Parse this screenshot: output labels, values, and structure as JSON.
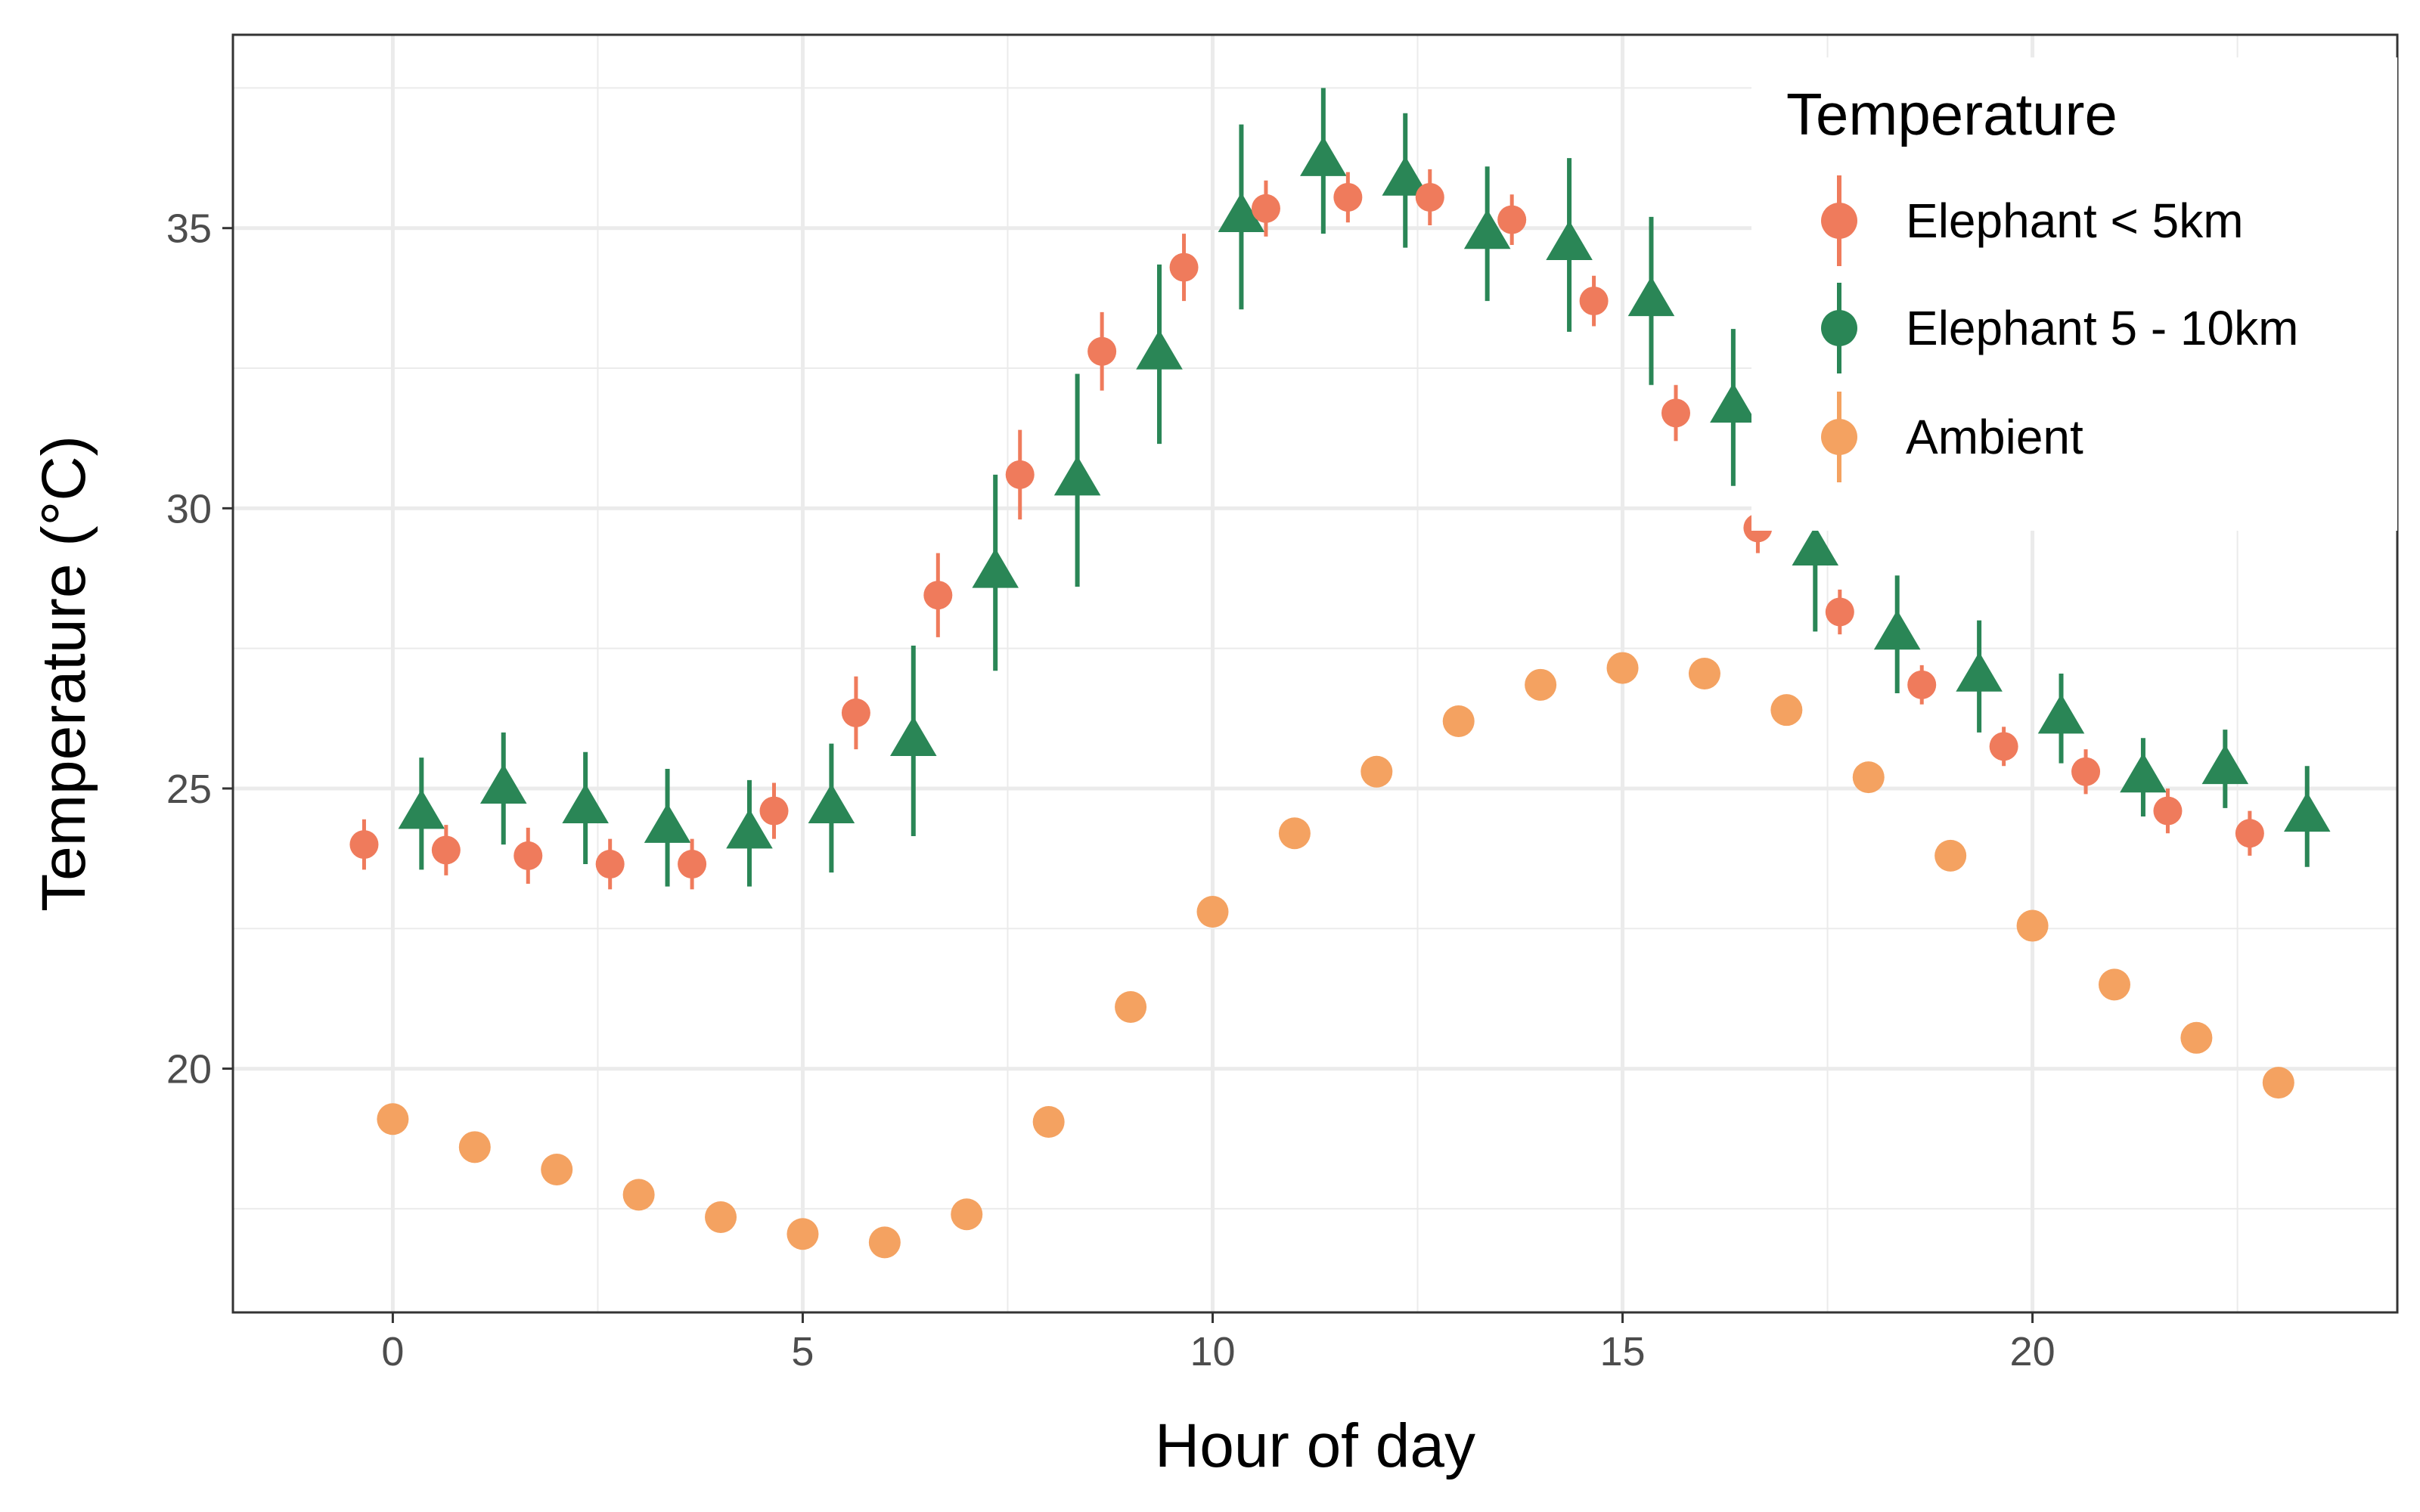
{
  "chart_data": {
    "type": "scatter",
    "xlabel": "Hour of day",
    "ylabel": "Temperature (°C)",
    "xlim": [
      -1.95,
      24.45
    ],
    "ylim": [
      15.65,
      38.45
    ],
    "x_ticks": [
      0,
      5,
      10,
      15,
      20
    ],
    "y_ticks": [
      20,
      25,
      30,
      35
    ],
    "grid": true,
    "legend": {
      "title": "Temperature",
      "position": "top-right",
      "entries": [
        "Elephant < 5km",
        "Elephant 5 - 10km",
        "Ambient"
      ]
    },
    "series": [
      {
        "name": "Elephant < 5km",
        "color": "#ef7b5c",
        "marker": "circle",
        "x": [
          -0.35,
          0.65,
          1.65,
          2.65,
          3.65,
          4.65,
          5.65,
          6.65,
          7.65,
          8.65,
          9.65,
          10.65,
          11.65,
          12.65,
          13.65,
          14.65,
          15.65,
          16.65,
          17.65,
          18.65,
          19.65,
          20.65,
          21.65,
          22.65
        ],
        "y": [
          24.0,
          23.9,
          23.8,
          23.65,
          23.65,
          24.6,
          26.35,
          28.45,
          30.6,
          32.8,
          34.3,
          35.35,
          35.55,
          35.55,
          35.15,
          33.7,
          31.7,
          29.65,
          28.15,
          26.85,
          25.75,
          25.3,
          24.6,
          24.2
        ],
        "err": [
          0.45,
          0.45,
          0.5,
          0.45,
          0.45,
          0.5,
          0.65,
          0.75,
          0.8,
          0.7,
          0.6,
          0.5,
          0.45,
          0.5,
          0.45,
          0.45,
          0.5,
          0.45,
          0.4,
          0.35,
          0.35,
          0.4,
          0.4,
          0.4
        ]
      },
      {
        "name": "Elephant 5 - 10km",
        "color": "#2a8656",
        "marker": "triangle",
        "x": [
          0.35,
          1.35,
          2.35,
          3.35,
          4.35,
          5.35,
          6.35,
          7.35,
          8.35,
          9.35,
          10.35,
          11.35,
          12.35,
          13.35,
          14.35,
          15.35,
          16.35,
          17.35,
          18.35,
          19.35,
          20.35,
          21.35,
          22.35,
          23.35
        ],
        "y": [
          24.55,
          25.0,
          24.65,
          24.3,
          24.2,
          24.65,
          25.85,
          28.85,
          30.5,
          32.75,
          35.2,
          36.2,
          35.85,
          34.9,
          34.7,
          33.7,
          31.8,
          29.25,
          27.75,
          27.0,
          26.25,
          25.2,
          25.35,
          24.5
        ],
        "err": [
          1.0,
          1.0,
          1.0,
          1.05,
          0.95,
          1.15,
          1.7,
          1.75,
          1.9,
          1.6,
          1.65,
          1.3,
          1.2,
          1.2,
          1.55,
          1.5,
          1.4,
          1.45,
          1.05,
          1.0,
          0.8,
          0.7,
          0.7,
          0.9
        ]
      },
      {
        "name": "Ambient",
        "color": "#f4a261",
        "marker": "circle",
        "x": [
          0,
          1,
          2,
          3,
          4,
          5,
          6,
          7,
          8,
          9,
          10,
          11,
          12,
          13,
          14,
          15,
          16,
          17,
          18,
          19,
          20,
          21,
          22,
          23
        ],
        "y": [
          19.1,
          18.6,
          18.2,
          17.75,
          17.35,
          17.05,
          16.9,
          17.4,
          19.05,
          21.1,
          22.8,
          24.2,
          25.3,
          26.2,
          26.85,
          27.15,
          27.05,
          26.4,
          25.2,
          23.8,
          22.55,
          21.5,
          20.55,
          19.75
        ]
      }
    ]
  }
}
